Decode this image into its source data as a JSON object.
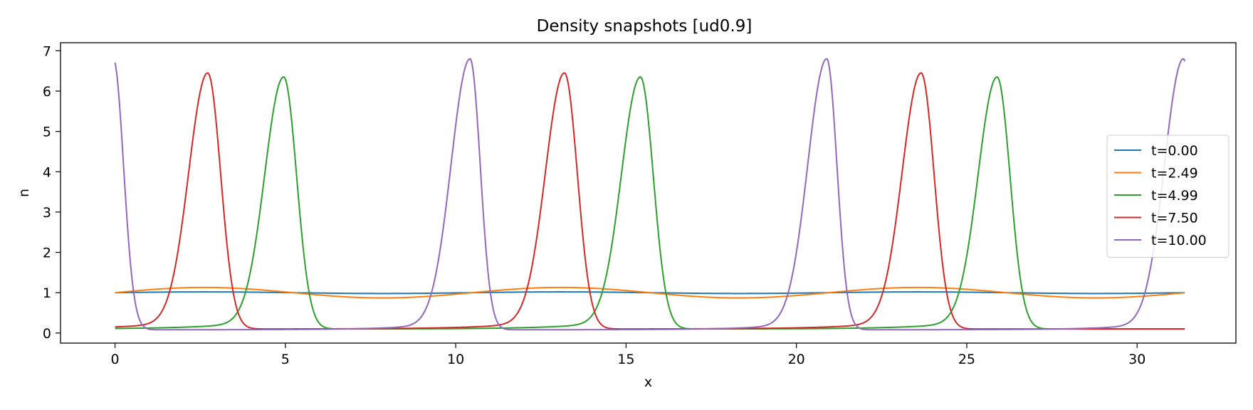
{
  "chart_data": {
    "type": "line",
    "title": "Density snapshots  [ud0.9]",
    "xlabel": "x",
    "ylabel": "n",
    "xlim": [
      -1.6,
      32.9
    ],
    "ylim": [
      -0.25,
      7.2
    ],
    "xticks": [
      0,
      5,
      10,
      15,
      20,
      25,
      30
    ],
    "yticks": [
      0,
      1,
      2,
      3,
      4,
      5,
      6,
      7
    ],
    "grid": false,
    "legend_position": "right",
    "domain_max": 31.4,
    "series": [
      {
        "name": "t=0.00",
        "color": "#1f77b4",
        "model": "sine",
        "base": 1.0,
        "amplitude": 0.02,
        "period": 10.47,
        "phase": 0.0
      },
      {
        "name": "t=2.49",
        "color": "#ff7f0e",
        "model": "sine",
        "base": 1.0,
        "amplitude": 0.13,
        "period": 10.47,
        "phase": 0.0
      },
      {
        "name": "t=4.99",
        "color": "#2ca02c",
        "model": "peaks",
        "base": 0.1,
        "peak": 6.35,
        "centers": [
          4.95,
          15.42,
          25.89
        ],
        "left_width": 0.55,
        "right_width": 0.38,
        "tail_amp": 0.28,
        "tail_width": 1.6
      },
      {
        "name": "t=7.50",
        "color": "#d62728",
        "model": "peaks",
        "base": 0.1,
        "peak": 6.45,
        "centers": [
          2.72,
          13.19,
          23.66
        ],
        "left_width": 0.55,
        "right_width": 0.38,
        "tail_amp": 0.28,
        "tail_width": 1.6
      },
      {
        "name": "t=10.00",
        "color": "#9467bd",
        "model": "peaks",
        "base": 0.08,
        "peak": 6.8,
        "centers": [
          -0.05,
          10.42,
          20.89,
          31.36
        ],
        "left_width": 0.55,
        "right_width": 0.3,
        "tail_amp": 0.25,
        "tail_width": 1.5
      }
    ]
  }
}
